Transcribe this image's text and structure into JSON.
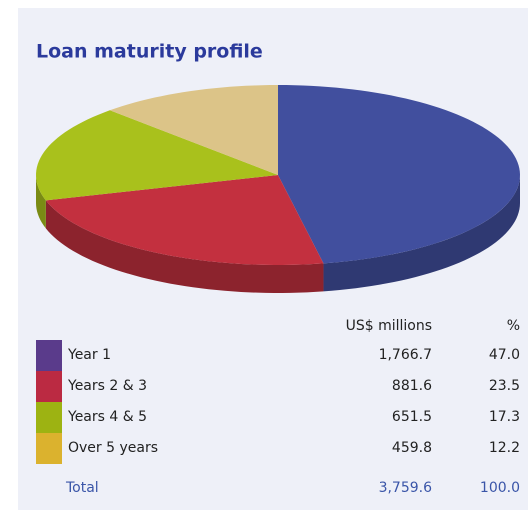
{
  "chart_data": {
    "type": "pie",
    "title": "Loan maturity profile",
    "categories": [
      "Year 1",
      "Years 2 & 3",
      "Years 4 & 5",
      "Over 5 years"
    ],
    "values": [
      1766.7,
      881.6,
      651.5,
      459.8
    ],
    "value_labels": [
      "1,766.7",
      "881.6",
      "651.5",
      "459.8"
    ],
    "percent": [
      47.0,
      23.5,
      17.3,
      12.2
    ],
    "percent_labels": [
      "47.0",
      "23.5",
      "17.3",
      "12.2"
    ],
    "colors": [
      "#414f9e",
      "#c3303f",
      "#a9c11c",
      "#dcc488"
    ],
    "legend_colors": [
      "#5a3b8b",
      "#bb2a42",
      "#9db312",
      "#dbb22e"
    ],
    "columns": [
      "US$ millions",
      "%"
    ],
    "total_label": "Total",
    "total": {
      "value": 3759.6,
      "label": "3,759.6"
    },
    "total_percent": {
      "value": 100,
      "label": "100.0"
    }
  }
}
